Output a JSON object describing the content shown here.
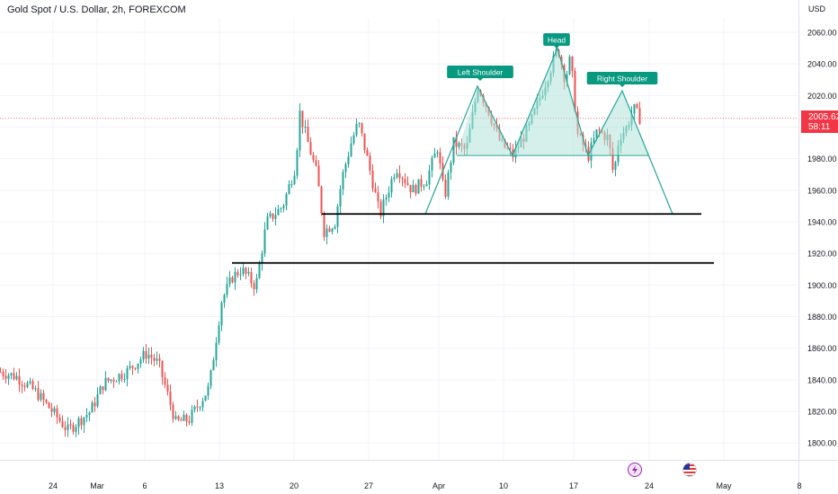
{
  "header": {
    "title": "Gold Spot / U.S. Dollar, 2h, FOREXCOM",
    "currency": "USD"
  },
  "last_price": {
    "value": "2005.62",
    "countdown": "58:11"
  },
  "annotations": [
    "Left Shoulder",
    "Head",
    "Right Shoulder"
  ],
  "icons": [
    "flash-icon",
    "us-flag-icon"
  ],
  "colors": {
    "up": "#26a69a",
    "down": "#ef5350",
    "pattern": "#26a69a",
    "pattern_fill": "#b2e4d8",
    "label_bg": "#089981",
    "last_price_line": "#f23645"
  },
  "chart_data": {
    "type": "candlestick",
    "title": "Gold Spot / U.S. Dollar, 2h, FOREXCOM",
    "ylabel": "USD",
    "ylim": [
      1792,
      2068
    ],
    "yticks": [
      1800,
      1820,
      1840,
      1860,
      1880,
      1900,
      1920,
      1940,
      1960,
      1980,
      2000,
      2020,
      2040,
      2060
    ],
    "xtick_labels": [
      "24",
      "Mar",
      "6",
      "13",
      "20",
      "27",
      "Apr",
      "10",
      "17",
      "24",
      "May",
      "8"
    ],
    "grid": true,
    "last_price": 2005.62,
    "key_prices": {
      "start": 1845,
      "feb_low": 1806,
      "late_feb_high": 1857,
      "early_mar_low": 1810,
      "mar_13_breakout": 1905,
      "mar_20_high": 2009,
      "mar_22_low": 1934,
      "mar_28_high": 2003,
      "mar_31_low": 1944,
      "left_shoulder_high": 2026,
      "neckline_low_1": 1982,
      "head_high": 2050,
      "neckline_low_2": 1982,
      "right_shoulder_high": 2023,
      "apr_20_spike_low": 1969,
      "close": 2005.62
    },
    "horizontal_lines": [
      1945,
      1914
    ],
    "pattern": {
      "name": "head and shoulders",
      "labels": [
        "Left Shoulder",
        "Head",
        "Right Shoulder"
      ],
      "neckline": 1982,
      "projected_target": 1945
    }
  }
}
